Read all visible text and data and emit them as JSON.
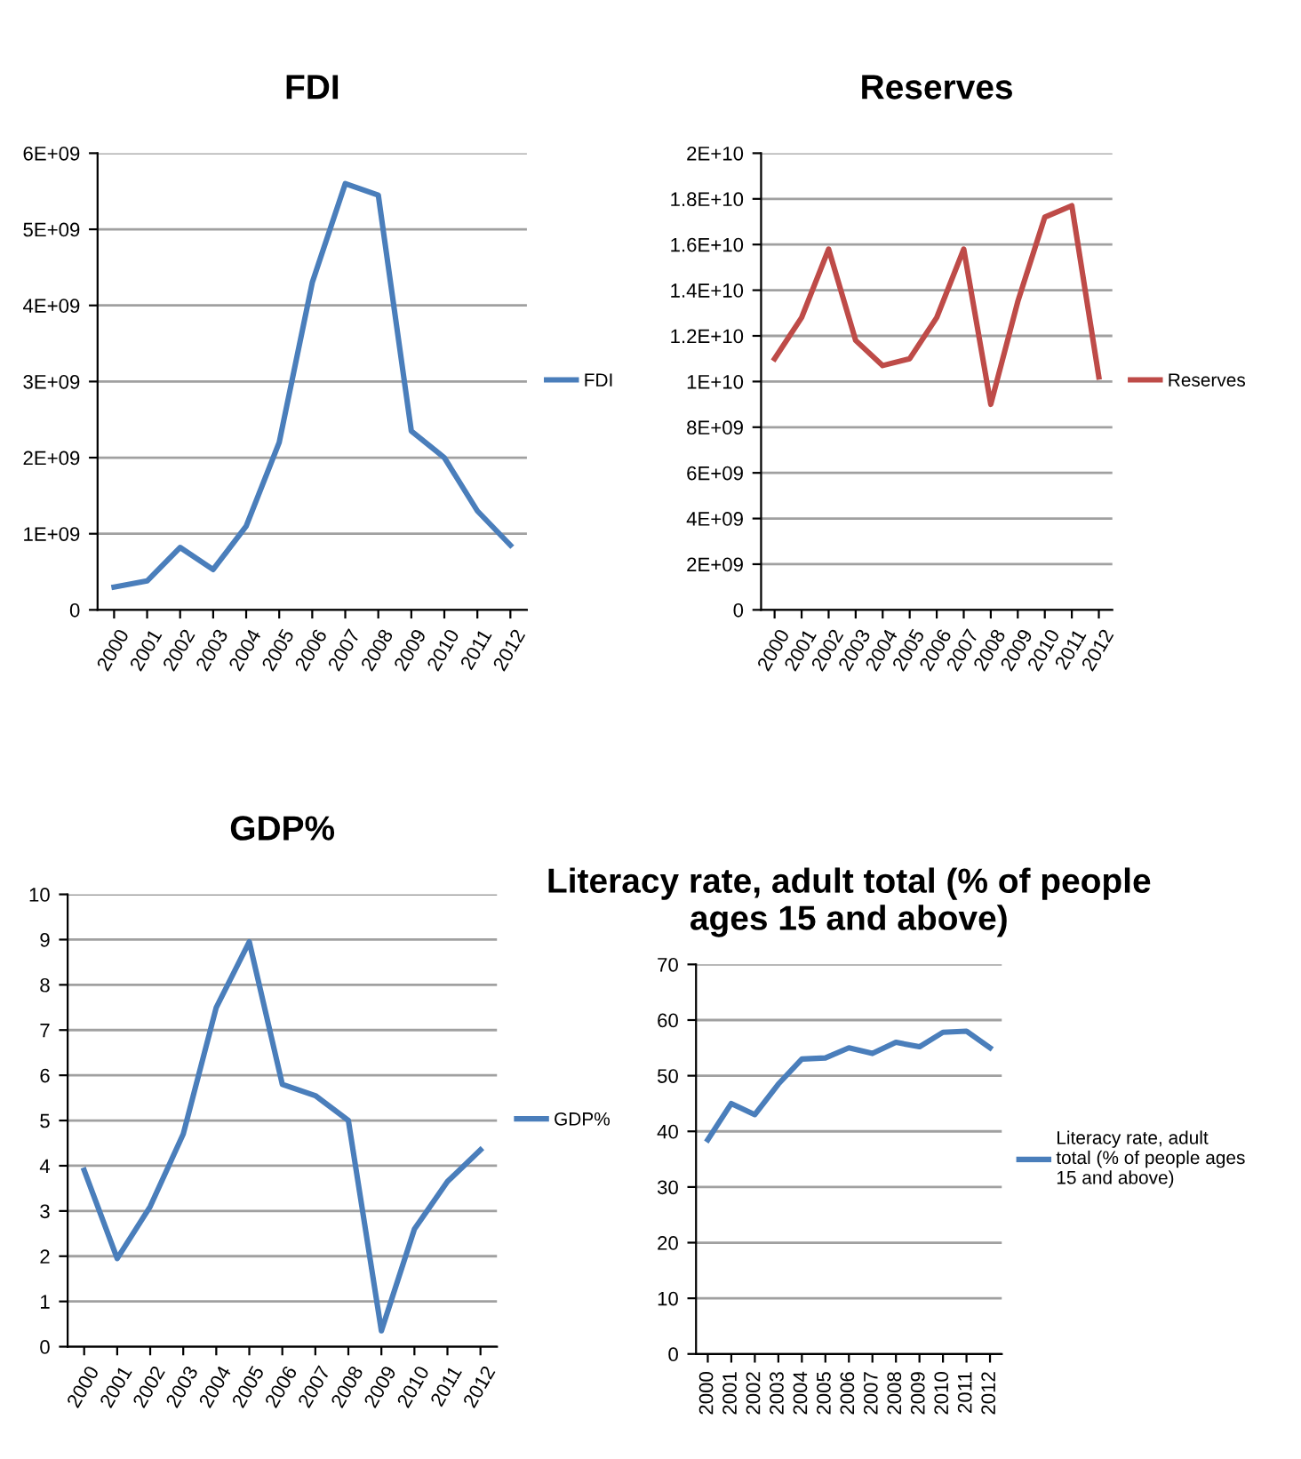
{
  "chart_data": [
    {
      "type": "line",
      "title": "FDI",
      "categories": [
        "2000",
        "2001",
        "2002",
        "2003",
        "2004",
        "2005",
        "2006",
        "2007",
        "2008",
        "2009",
        "2010",
        "2011",
        "2012"
      ],
      "series": [
        {
          "name": "FDI",
          "color": "#4a7ebb",
          "values": [
            300000000.0,
            380000000.0,
            820000000.0,
            530000000.0,
            1100000000.0,
            2200000000.0,
            4300000000.0,
            5600000000.0,
            5450000000.0,
            2350000000.0,
            2000000000.0,
            1300000000.0,
            850000000.0
          ]
        }
      ],
      "ylim": [
        0,
        6000000000.0
      ],
      "yticks": [
        0,
        {
          "value": 1000000000.0,
          "label": "1E+09"
        },
        {
          "value": 2000000000.0,
          "label": "2E+09"
        },
        {
          "value": 3000000000.0,
          "label": "3E+09"
        },
        {
          "value": 4000000000.0,
          "label": "4E+09"
        },
        {
          "value": 5000000000.0,
          "label": "5E+09"
        },
        {
          "value": 6000000000.0,
          "label": "6E+09"
        }
      ],
      "grid": "y",
      "legend": "right",
      "marker": "none",
      "line_style": "solid"
    },
    {
      "type": "line",
      "title": "Reserves",
      "categories": [
        "2000",
        "2001",
        "2002",
        "2003",
        "2004",
        "2005",
        "2006",
        "2007",
        "2008",
        "2009",
        "2010",
        "2011",
        "2012"
      ],
      "series": [
        {
          "name": "Reserves",
          "color": "#be4b48",
          "values": [
            11000000000.0,
            12800000000.0,
            15800000000.0,
            11800000000.0,
            10700000000.0,
            11000000000.0,
            12800000000.0,
            15800000000.0,
            9000000000.0,
            13500000000.0,
            17200000000.0,
            17700000000.0,
            10200000000.0
          ]
        }
      ],
      "ylim": [
        0,
        20000000000.0
      ],
      "yticks": [
        0,
        {
          "value": 2000000000.0,
          "label": "2E+09"
        },
        {
          "value": 4000000000.0,
          "label": "4E+09"
        },
        {
          "value": 6000000000.0,
          "label": "6E+09"
        },
        {
          "value": 8000000000.0,
          "label": "8E+09"
        },
        {
          "value": 10000000000.0,
          "label": "1E+10"
        },
        {
          "value": 12000000000.0,
          "label": "1.2E+10"
        },
        {
          "value": 14000000000.0,
          "label": "1.4E+10"
        },
        {
          "value": 16000000000.0,
          "label": "1.6E+10"
        },
        {
          "value": 18000000000.0,
          "label": "1.8E+10"
        },
        {
          "value": 20000000000.0,
          "label": "2E+10"
        }
      ],
      "grid": "y",
      "legend": "right",
      "marker": "none",
      "line_style": "solid"
    },
    {
      "type": "line",
      "title": "GDP%",
      "categories": [
        "2000",
        "2001",
        "2002",
        "2003",
        "2004",
        "2005",
        "2006",
        "2007",
        "2008",
        "2009",
        "2010",
        "2011",
        "2012"
      ],
      "series": [
        {
          "name": "GDP%",
          "color": "#4a7ebb",
          "values": [
            3.9,
            1.95,
            3.1,
            4.7,
            7.5,
            8.95,
            5.8,
            5.55,
            5.0,
            0.35,
            2.6,
            3.65,
            4.35
          ]
        }
      ],
      "ylim": [
        0,
        10
      ],
      "yticks": [
        0,
        1,
        2,
        3,
        4,
        5,
        6,
        7,
        8,
        9,
        10
      ],
      "grid": "y",
      "legend": "right",
      "marker": "none",
      "line_style": "solid"
    },
    {
      "type": "line",
      "title": "Literacy rate, adult total (% of people\nages 15 and above)",
      "categories": [
        "2000",
        "2001",
        "2002",
        "2003",
        "2004",
        "2005",
        "2006",
        "2007",
        "2008",
        "2009",
        "2010",
        "2011",
        "2012"
      ],
      "series": [
        {
          "name": "Literacy rate, adult\ntotal (% of people ages\n15 and above)",
          "color": "#4a7ebb",
          "values": [
            38.5,
            45,
            43,
            48.5,
            53,
            53.2,
            55,
            54,
            56,
            55.2,
            57.8,
            58,
            55
          ]
        }
      ],
      "ylim": [
        0,
        70
      ],
      "yticks": [
        0,
        10,
        20,
        30,
        40,
        50,
        60,
        70
      ],
      "grid": "y",
      "legend": "right",
      "marker": "none",
      "line_style": "solid"
    }
  ]
}
